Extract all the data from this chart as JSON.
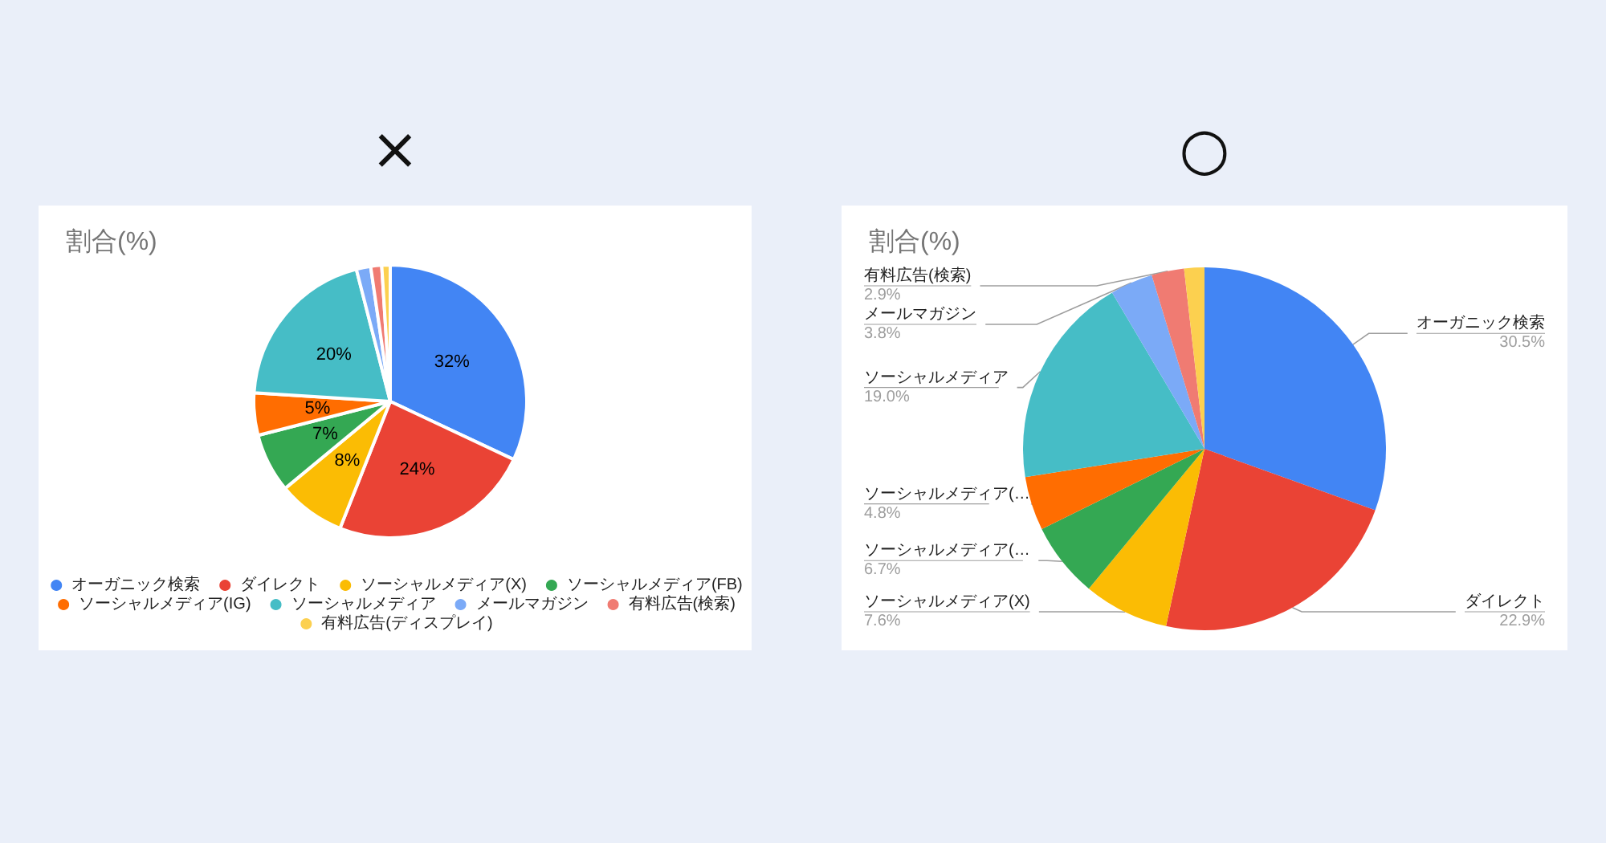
{
  "chart_data": [
    {
      "type": "pie",
      "title": "割合(%)",
      "annotations": [
        "×"
      ],
      "categories": [
        "オーガニック検索",
        "ダイレクト",
        "ソーシャルメディア(X)",
        "ソーシャルメディア(FB)",
        "ソーシャルメディア(IG)",
        "ソーシャルメディア",
        "メールマガジン",
        "有料広告(検索)",
        "有料広告(ディスプレイ)"
      ],
      "values": [
        32,
        24,
        8,
        7,
        5,
        20,
        1.7,
        1.3,
        1.0
      ],
      "value_labels": [
        "32%",
        "24%",
        "8%",
        "7%",
        "5%",
        "20%",
        null,
        null,
        null
      ],
      "colors": [
        "#4285f4",
        "#ea4335",
        "#fbbc04",
        "#34a853",
        "#ff6d01",
        "#46bdc6",
        "#7baaf7",
        "#f07b72",
        "#fcd04f"
      ],
      "legend": "bottom"
    },
    {
      "type": "pie",
      "title": "割合(%)",
      "annotations": [
        "○"
      ],
      "categories": [
        "オーガニック検索",
        "ダイレクト",
        "ソーシャルメディア(X)",
        "ソーシャルメディア(…",
        "ソーシャルメディア(…",
        "ソーシャルメディア",
        "メールマガジン",
        "有料広告(検索)",
        null
      ],
      "values": [
        30.5,
        22.9,
        7.6,
        6.7,
        4.8,
        19.0,
        3.8,
        2.9,
        1.8
      ],
      "value_labels": [
        "30.5%",
        "22.9%",
        "7.6%",
        "6.7%",
        "4.8%",
        "19.0%",
        "3.8%",
        "2.9%",
        null
      ],
      "colors": [
        "#4285f4",
        "#ea4335",
        "#fbbc04",
        "#34a853",
        "#ff6d01",
        "#46bdc6",
        "#7baaf7",
        "#f07b72",
        "#fcd04f"
      ],
      "legend": false
    }
  ]
}
